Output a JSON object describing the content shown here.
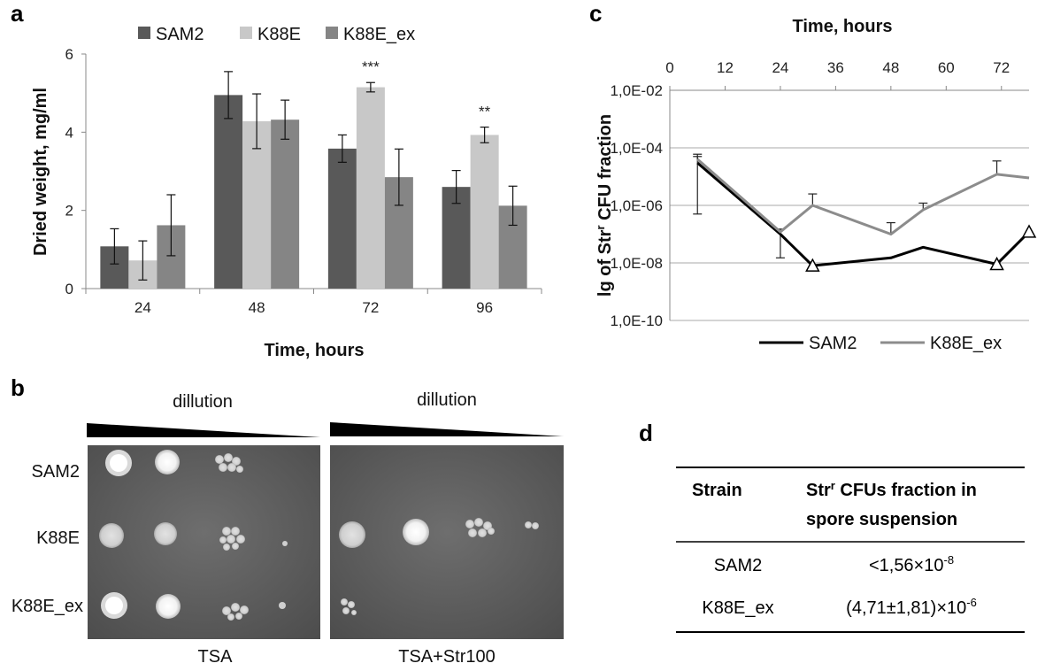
{
  "panels": {
    "a": "a",
    "b": "b",
    "c": "c",
    "d": "d"
  },
  "chart_data": [
    {
      "type": "bar",
      "panel": "a",
      "categories": [
        "24",
        "48",
        "72",
        "96"
      ],
      "series": [
        {
          "name": "SAM2",
          "color": "#595959",
          "values": [
            1.08,
            4.95,
            3.58,
            2.6
          ],
          "errors": [
            0.45,
            0.6,
            0.35,
            0.42
          ]
        },
        {
          "name": "K88E",
          "color": "#c8c8c8",
          "values": [
            0.72,
            4.28,
            5.15,
            3.93
          ],
          "errors": [
            0.5,
            0.7,
            0.12,
            0.2
          ]
        },
        {
          "name": "K88E_ex",
          "color": "#858585",
          "values": [
            1.62,
            4.32,
            2.85,
            2.12
          ],
          "errors": [
            0.78,
            0.5,
            0.72,
            0.5
          ]
        }
      ],
      "significance": [
        {
          "category": "72",
          "label": "***"
        },
        {
          "category": "96",
          "label": "**"
        }
      ],
      "xlabel": "Time, hours",
      "ylabel": "Dried weight, mg/ml",
      "ylim": [
        0,
        6
      ],
      "yticks": [
        "0",
        "2",
        "4",
        "6"
      ],
      "legend": "top",
      "grid": false
    },
    {
      "type": "line",
      "panel": "c",
      "xlabel": "Time, hours",
      "ylabel": "lg of Str",
      "ylabel_sup": "r",
      "ylabel_tail": " CFU fraction",
      "xlim": [
        0,
        78
      ],
      "xticks": [
        "0",
        "12",
        "24",
        "36",
        "48",
        "60",
        "72"
      ],
      "y_scale": "log",
      "ylim": [
        1e-10,
        0.01
      ],
      "yticks": [
        "1,0E-02",
        "1,0E-04",
        "1,0E-06",
        "1,0E-08",
        "1,0E-10"
      ],
      "grid": true,
      "legend": "bottom",
      "series": [
        {
          "name": "SAM2",
          "color": "#000000",
          "x": [
            6,
            24,
            31,
            48,
            55,
            71,
            78
          ],
          "y": [
            3e-05,
            1e-07,
            8e-09,
            1.5e-08,
            3.5e-08,
            9e-09,
            1.2e-07
          ],
          "error_up": [
            5e-05,
            null,
            null,
            null,
            null,
            null,
            null
          ],
          "error_down": [
            5e-07,
            1.5e-08,
            null,
            null,
            null,
            null,
            null
          ],
          "below_detection_x": [
            31,
            71,
            78
          ]
        },
        {
          "name": "K88E_ex",
          "color": "#8c8c8c",
          "x": [
            6,
            24,
            31,
            48,
            55,
            71,
            78
          ],
          "y": [
            4e-05,
            1.2e-07,
            1e-06,
            1e-07,
            7e-07,
            1.2e-05,
            9e-06
          ],
          "error_up": [
            6e-05,
            1.5e-07,
            2.5e-06,
            2.5e-07,
            1.2e-06,
            3.5e-05,
            null
          ],
          "error_down": [
            null,
            null,
            null,
            null,
            null,
            null,
            null
          ]
        }
      ]
    }
  ],
  "plates": {
    "dilution_left": "dillution",
    "dilution_right": "dillution",
    "rows": [
      "SAM2",
      "K88E",
      "K88E_ex"
    ],
    "medium_left": "TSA",
    "medium_right": "TSA+Str100"
  },
  "table": {
    "header_strain": "Strain",
    "header_fraction_line1_pre": "Str",
    "header_fraction_line1_sup": "r",
    "header_fraction_line1_post": " CFUs fraction in",
    "header_fraction_line2": "spore suspension",
    "rows": [
      {
        "strain": "SAM2",
        "fraction_base": "<1,56×10",
        "fraction_exp": "-8"
      },
      {
        "strain": "K88E_ex",
        "fraction_base": "(4,71±1,81)×10",
        "fraction_exp": "-6"
      }
    ]
  }
}
